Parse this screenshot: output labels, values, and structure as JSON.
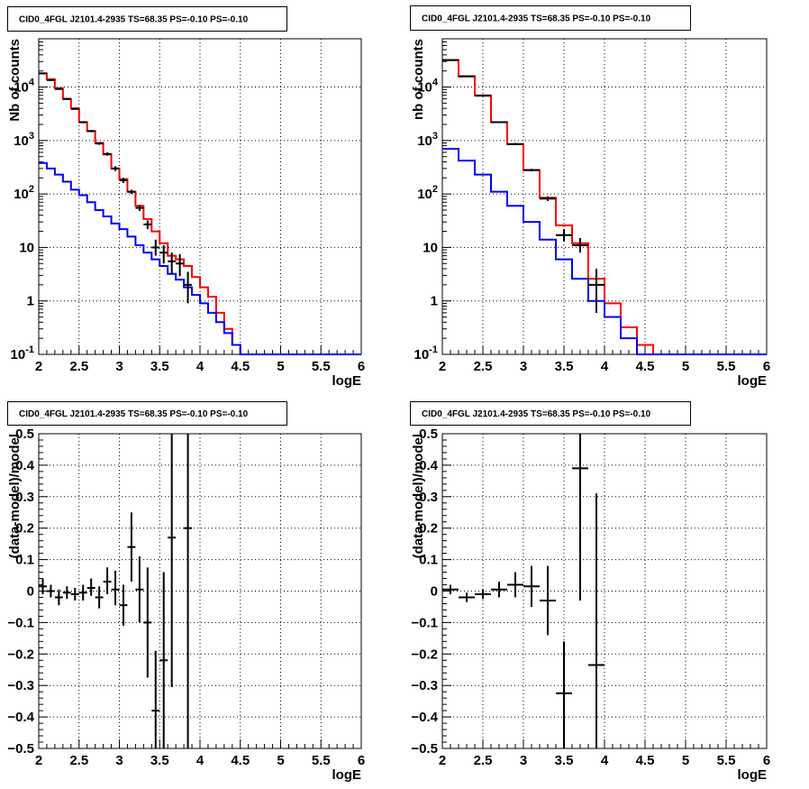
{
  "chart_data": [
    {
      "type": "line",
      "title": "CID0_4FGL J2101.4-2935 TS=68.35 PS=-0.10 PS=-0.10",
      "xlabel": "logE",
      "ylabel": "Nb of counts",
      "yscale": "log",
      "xlim": [
        2,
        6
      ],
      "ylim": [
        0.1,
        80000
      ],
      "grid": true,
      "x_ticks": [
        "2",
        "2.5",
        "3",
        "3.5",
        "4",
        "4.5",
        "5",
        "5.5",
        "6"
      ],
      "y_ticks": [
        {
          "value": 0.1,
          "base": "10",
          "exp": "-1"
        },
        {
          "value": 1,
          "label": "1"
        },
        {
          "value": 10,
          "label": "10"
        },
        {
          "value": 100,
          "base": "10",
          "exp": "2"
        },
        {
          "value": 1000,
          "base": "10",
          "exp": "3"
        },
        {
          "value": 10000,
          "base": "10",
          "exp": "4"
        }
      ],
      "bin_edges": [
        2.0,
        2.1,
        2.2,
        2.3,
        2.4,
        2.5,
        2.6,
        2.7,
        2.8,
        2.9,
        3.0,
        3.1,
        3.2,
        3.3,
        3.4,
        3.5,
        3.6,
        3.7,
        3.8,
        3.9,
        4.0,
        4.1,
        4.2,
        4.3,
        4.4,
        4.5,
        4.6,
        4.7,
        4.8,
        4.9,
        5.0,
        5.1,
        5.2,
        5.3,
        5.4,
        5.5,
        5.6,
        5.7,
        5.8,
        5.9,
        6.0
      ],
      "series": [
        {
          "color": "#ff0000",
          "style": "step",
          "values": [
            18000,
            14000,
            9500,
            6000,
            4000,
            2200,
            1500,
            900,
            550,
            300,
            190,
            110,
            60,
            34,
            20,
            12,
            7,
            6,
            4.5,
            2.8,
            1.8,
            1.2,
            0.6,
            0.3,
            0.15,
            0.1,
            0.1,
            0.1,
            0.1,
            0.1,
            0.1,
            0.1,
            0.1,
            0.1,
            0.1,
            0.1,
            0.1,
            0.1,
            0.1,
            0.1
          ]
        },
        {
          "color": "#0000ff",
          "style": "step",
          "values": [
            380,
            300,
            230,
            170,
            120,
            95,
            70,
            50,
            38,
            28,
            22,
            16,
            11,
            8,
            6,
            4.5,
            3.2,
            2.5,
            1.8,
            1.3,
            0.9,
            0.6,
            0.4,
            0.25,
            0.15,
            0.1,
            0.1,
            0.1,
            0.1,
            0.1,
            0.1,
            0.1,
            0.1,
            0.1,
            0.1,
            0.1,
            0.1,
            0.1,
            0.1,
            0.1
          ]
        },
        {
          "color": "#000000",
          "style": "points",
          "points": [
            {
              "x": 2.05,
              "y": 18000,
              "lo": 17500,
              "hi": 18500
            },
            {
              "x": 2.15,
              "y": 13500,
              "lo": 13000,
              "hi": 14000
            },
            {
              "x": 2.25,
              "y": 9200,
              "lo": 8900,
              "hi": 9500
            },
            {
              "x": 2.35,
              "y": 6000,
              "lo": 5800,
              "hi": 6200
            },
            {
              "x": 2.45,
              "y": 3900,
              "lo": 3750,
              "hi": 4050
            },
            {
              "x": 2.55,
              "y": 2200,
              "lo": 2100,
              "hi": 2300
            },
            {
              "x": 2.65,
              "y": 1500,
              "lo": 1430,
              "hi": 1570
            },
            {
              "x": 2.75,
              "y": 880,
              "lo": 830,
              "hi": 930
            },
            {
              "x": 2.85,
              "y": 560,
              "lo": 520,
              "hi": 600
            },
            {
              "x": 2.95,
              "y": 300,
              "lo": 270,
              "hi": 330
            },
            {
              "x": 3.05,
              "y": 180,
              "lo": 160,
              "hi": 200
            },
            {
              "x": 3.15,
              "y": 110,
              "lo": 100,
              "hi": 120
            },
            {
              "x": 3.25,
              "y": 55,
              "lo": 48,
              "hi": 62
            },
            {
              "x": 3.35,
              "y": 27,
              "lo": 22,
              "hi": 32
            },
            {
              "x": 3.45,
              "y": 10,
              "lo": 7,
              "hi": 14
            },
            {
              "x": 3.55,
              "y": 8,
              "lo": 5,
              "hi": 11
            },
            {
              "x": 3.65,
              "y": 5.5,
              "lo": 3.2,
              "hi": 8
            },
            {
              "x": 3.75,
              "y": 5,
              "lo": 2.9,
              "hi": 7.5
            },
            {
              "x": 3.85,
              "y": 2,
              "lo": 0.9,
              "hi": 3.5
            }
          ]
        }
      ]
    },
    {
      "type": "line",
      "title": "CID0_4FGL J2101.4-2935 TS=68.35 PS=-0.10 PS=-0.10",
      "xlabel": "logE",
      "ylabel": "nb of counts",
      "yscale": "log",
      "xlim": [
        2,
        6
      ],
      "ylim": [
        0.1,
        80000
      ],
      "grid": true,
      "x_ticks": [
        "2",
        "2.5",
        "3",
        "3.5",
        "4",
        "4.5",
        "5",
        "5.5",
        "6"
      ],
      "y_ticks": [
        {
          "value": 0.1,
          "base": "10",
          "exp": "-1"
        },
        {
          "value": 1,
          "label": "1"
        },
        {
          "value": 10,
          "label": "10"
        },
        {
          "value": 100,
          "base": "10",
          "exp": "2"
        },
        {
          "value": 1000,
          "base": "10",
          "exp": "3"
        },
        {
          "value": 10000,
          "base": "10",
          "exp": "4"
        }
      ],
      "bin_edges": [
        2.0,
        2.2,
        2.4,
        2.6,
        2.8,
        3.0,
        3.2,
        3.4,
        3.6,
        3.8,
        4.0,
        4.2,
        4.4,
        4.6,
        4.8,
        5.0,
        5.2,
        5.4,
        5.6,
        5.8,
        6.0
      ],
      "series": [
        {
          "color": "#ff0000",
          "style": "step",
          "values": [
            32000,
            16000,
            7000,
            2200,
            850,
            280,
            85,
            26,
            12,
            2.6,
            0.9,
            0.32,
            0.15,
            0.1,
            0.1,
            0.1,
            0.1,
            0.1,
            0.1,
            0.1
          ]
        },
        {
          "color": "#0000ff",
          "style": "step",
          "values": [
            700,
            420,
            230,
            110,
            60,
            30,
            14,
            6,
            2.6,
            1,
            0.5,
            0.2,
            0.1,
            0.1,
            0.1,
            0.1,
            0.1,
            0.1,
            0.1,
            0.1
          ]
        },
        {
          "color": "#000000",
          "style": "points",
          "points": [
            {
              "x": 2.1,
              "y": 32000,
              "lo": 31500,
              "hi": 32500
            },
            {
              "x": 2.3,
              "y": 15800,
              "lo": 15500,
              "hi": 16100
            },
            {
              "x": 2.5,
              "y": 6900,
              "lo": 6750,
              "hi": 7050
            },
            {
              "x": 2.7,
              "y": 2200,
              "lo": 2150,
              "hi": 2250
            },
            {
              "x": 2.9,
              "y": 860,
              "lo": 820,
              "hi": 900
            },
            {
              "x": 3.1,
              "y": 280,
              "lo": 265,
              "hi": 295
            },
            {
              "x": 3.3,
              "y": 82,
              "lo": 74,
              "hi": 90
            },
            {
              "x": 3.5,
              "y": 17,
              "lo": 13,
              "hi": 22
            },
            {
              "x": 3.7,
              "y": 11,
              "lo": 8,
              "hi": 15
            },
            {
              "x": 3.9,
              "y": 2,
              "lo": 0.6,
              "hi": 4
            }
          ]
        }
      ]
    },
    {
      "type": "scatter",
      "title": "CID0_4FGL J2101.4-2935 TS=68.35 PS=-0.10 PS=-0.10",
      "xlabel": "logE",
      "ylabel": "(data-model)/model",
      "xlim": [
        2,
        6
      ],
      "ylim": [
        -0.5,
        0.5
      ],
      "grid": true,
      "x_ticks": [
        "2",
        "2.5",
        "3",
        "3.5",
        "4",
        "4.5",
        "5",
        "5.5",
        "6"
      ],
      "y_ticks": [
        "−0.5",
        "−0.4",
        "−0.3",
        "−0.2",
        "−0.1",
        "0",
        "0.1",
        "0.2",
        "0.3",
        "0.4",
        "0.5"
      ],
      "xerr": 0.05,
      "points": [
        {
          "x": 2.05,
          "y": 0.015,
          "lo": -0.01,
          "hi": 0.04
        },
        {
          "x": 2.15,
          "y": 0.0,
          "lo": -0.02,
          "hi": 0.02
        },
        {
          "x": 2.25,
          "y": -0.02,
          "lo": -0.045,
          "hi": 0.005
        },
        {
          "x": 2.35,
          "y": -0.005,
          "lo": -0.025,
          "hi": 0.015
        },
        {
          "x": 2.45,
          "y": -0.01,
          "lo": -0.03,
          "hi": 0.01
        },
        {
          "x": 2.55,
          "y": -0.005,
          "lo": -0.03,
          "hi": 0.02
        },
        {
          "x": 2.65,
          "y": 0.01,
          "lo": -0.015,
          "hi": 0.04
        },
        {
          "x": 2.75,
          "y": -0.02,
          "lo": -0.055,
          "hi": 0.015
        },
        {
          "x": 2.85,
          "y": 0.03,
          "lo": -0.01,
          "hi": 0.075
        },
        {
          "x": 2.95,
          "y": 0.005,
          "lo": -0.045,
          "hi": 0.065
        },
        {
          "x": 3.05,
          "y": -0.045,
          "lo": -0.11,
          "hi": 0.02
        },
        {
          "x": 3.15,
          "y": 0.14,
          "lo": 0.03,
          "hi": 0.25
        },
        {
          "x": 3.25,
          "y": 0.005,
          "lo": -0.1,
          "hi": 0.11
        },
        {
          "x": 3.35,
          "y": -0.1,
          "lo": -0.275,
          "hi": 0.075
        },
        {
          "x": 3.45,
          "y": -0.38,
          "lo": -0.5,
          "hi": -0.19
        },
        {
          "x": 3.55,
          "y": -0.22,
          "lo": -0.5,
          "hi": 0.06
        },
        {
          "x": 3.65,
          "y": 0.17,
          "lo": -0.305,
          "hi": 0.5
        },
        {
          "x": 3.85,
          "y": 0.2,
          "lo": -0.5,
          "hi": 0.5
        }
      ]
    },
    {
      "type": "scatter",
      "title": "CID0_4FGL J2101.4-2935 TS=68.35 PS=-0.10 PS=-0.10",
      "xlabel": "logE",
      "ylabel": "(data-model)/model",
      "xlim": [
        2,
        6
      ],
      "ylim": [
        -0.5,
        0.5
      ],
      "grid": true,
      "x_ticks": [
        "2",
        "2.5",
        "3",
        "3.5",
        "4",
        "4.5",
        "5",
        "5.5",
        "6"
      ],
      "y_ticks": [
        "−0.5",
        "−0.4",
        "−0.3",
        "−0.2",
        "−0.1",
        "0",
        "0.1",
        "0.2",
        "0.3",
        "0.4",
        "0.5"
      ],
      "xerr": 0.1,
      "points": [
        {
          "x": 2.1,
          "y": 0.005,
          "lo": -0.01,
          "hi": 0.02
        },
        {
          "x": 2.3,
          "y": -0.02,
          "lo": -0.035,
          "hi": -0.005
        },
        {
          "x": 2.5,
          "y": -0.01,
          "lo": -0.025,
          "hi": 0.005
        },
        {
          "x": 2.7,
          "y": 0.005,
          "lo": -0.02,
          "hi": 0.03
        },
        {
          "x": 2.9,
          "y": 0.02,
          "lo": -0.02,
          "hi": 0.06
        },
        {
          "x": 3.1,
          "y": 0.015,
          "lo": -0.05,
          "hi": 0.08
        },
        {
          "x": 3.3,
          "y": -0.03,
          "lo": -0.14,
          "hi": 0.08
        },
        {
          "x": 3.5,
          "y": -0.325,
          "lo": -0.5,
          "hi": -0.16
        },
        {
          "x": 3.7,
          "y": 0.39,
          "lo": -0.03,
          "hi": 0.5
        },
        {
          "x": 3.9,
          "y": -0.235,
          "lo": -0.5,
          "hi": 0.31
        }
      ]
    }
  ]
}
